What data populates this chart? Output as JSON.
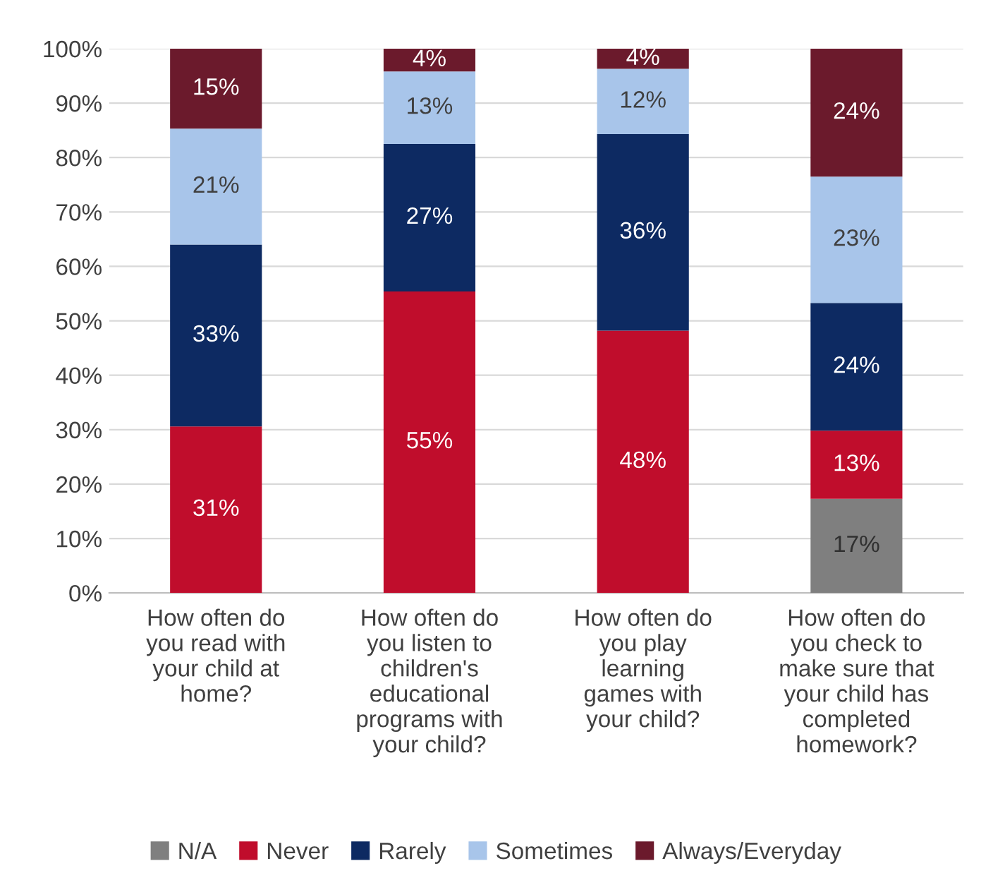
{
  "chart_data": {
    "type": "bar",
    "stacked": true,
    "categories": [
      "How often do\nyou read with\nyour child at\nhome?",
      "How often do\nyou listen to\nchildren's\neducational\nprograms with\nyour child?",
      "How often do\nyou play\nlearning\ngames with\nyour child?",
      "How often do\nyou check to\nmake sure that\nyour child has\ncompleted\nhomework?"
    ],
    "series": [
      {
        "name": "N/A",
        "color": "#7f7f7f",
        "values": [
          null,
          null,
          null,
          17.3
        ],
        "value_labels": [
          null,
          null,
          null,
          "17%"
        ]
      },
      {
        "name": "Never",
        "color": "#c00d2c",
        "values": [
          30.6,
          55.4,
          48.2,
          12.5
        ],
        "value_labels": [
          "31%",
          "55%",
          "48%",
          "13%"
        ]
      },
      {
        "name": "Rarely",
        "color": "#0d2a62",
        "values": [
          33.4,
          27.1,
          36.1,
          23.5
        ],
        "value_labels": [
          "33%",
          "27%",
          "36%",
          "24%"
        ]
      },
      {
        "name": "Sometimes",
        "color": "#a8c5ea",
        "values": [
          21.3,
          13.3,
          12.0,
          23.2
        ],
        "value_labels": [
          "21%",
          "13%",
          "12%",
          "23%"
        ]
      },
      {
        "name": "Always/Everyday",
        "color": "#6b1a2c",
        "values": [
          14.7,
          4.2,
          3.7,
          23.5
        ],
        "value_labels": [
          "15%",
          "4%",
          "4%",
          "24%"
        ]
      }
    ],
    "ylim": [
      0,
      100
    ],
    "yticks": [
      {
        "value": 0,
        "label": "0%"
      },
      {
        "value": 10,
        "label": "10%"
      },
      {
        "value": 20,
        "label": "20%"
      },
      {
        "value": 30,
        "label": "30%"
      },
      {
        "value": 40,
        "label": "40%"
      },
      {
        "value": 50,
        "label": "50%"
      },
      {
        "value": 60,
        "label": "60%"
      },
      {
        "value": 70,
        "label": "70%"
      },
      {
        "value": 80,
        "label": "80%"
      },
      {
        "value": 90,
        "label": "90%"
      },
      {
        "value": 100,
        "label": "100%"
      }
    ],
    "grid": "y",
    "legend": "bottom"
  }
}
